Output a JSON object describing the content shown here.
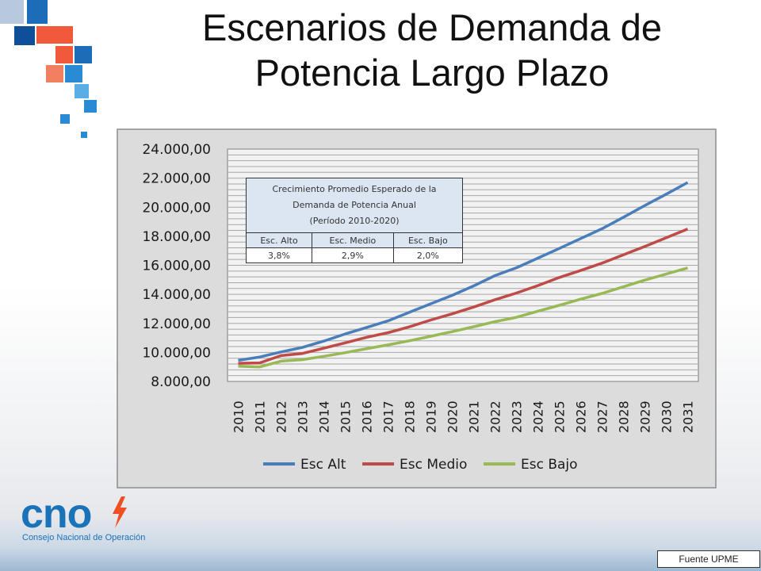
{
  "slide": {
    "title_line1": "Escenarios de Demanda de",
    "title_line2": "Potencia Largo Plazo",
    "source": "Fuente UPME"
  },
  "logo": {
    "text": "cno",
    "subtitle": "Consejo Nacional de Operación",
    "color": "#1a72b8",
    "bolt_color": "#f04e23"
  },
  "growth_table": {
    "caption_line1": "Crecimiento Promedio Esperado de la",
    "caption_line2": "Demanda de Potencia Anual",
    "caption_line3": "(Período 2010-2020)",
    "headers": [
      "Esc. Alto",
      "Esc. Medio",
      "Esc. Bajo"
    ],
    "values": [
      "3,8%",
      "2,9%",
      "2,0%"
    ]
  },
  "chart_data": {
    "type": "line",
    "x": [
      "2010",
      "2011",
      "2012",
      "2013",
      "2014",
      "2015",
      "2016",
      "2017",
      "2018",
      "2019",
      "2020",
      "2021",
      "2022",
      "2023",
      "2024",
      "2025",
      "2026",
      "2027",
      "2028",
      "2029",
      "2030",
      "2031"
    ],
    "y_tick_labels": [
      "8.000,00",
      "10.000,00",
      "12.000,00",
      "14.000,00",
      "16.000,00",
      "18.000,00",
      "20.000,00",
      "22.000,00",
      "24.000,00"
    ],
    "ylim": [
      8000,
      24000
    ],
    "grid": true,
    "legend_position": "bottom",
    "series": [
      {
        "name": "Esc Alt",
        "color": "#4a7ebb",
        "values": [
          9450,
          9680,
          10030,
          10340,
          10780,
          11270,
          11720,
          12170,
          12760,
          13350,
          13930,
          14580,
          15290,
          15830,
          16490,
          17160,
          17840,
          18520,
          19310,
          20120,
          20900,
          21700
        ]
      },
      {
        "name": "Esc Medio",
        "color": "#be4b48",
        "values": [
          9250,
          9280,
          9780,
          9930,
          10290,
          10660,
          11040,
          11360,
          11760,
          12230,
          12660,
          13120,
          13630,
          14090,
          14600,
          15160,
          15640,
          16150,
          16720,
          17300,
          17900,
          18500
        ]
      },
      {
        "name": "Esc Bajo",
        "color": "#98b954",
        "values": [
          9050,
          9000,
          9400,
          9500,
          9730,
          9980,
          10260,
          10520,
          10800,
          11110,
          11430,
          11770,
          12120,
          12420,
          12840,
          13240,
          13670,
          14060,
          14520,
          14980,
          15400,
          15820
        ]
      }
    ]
  }
}
